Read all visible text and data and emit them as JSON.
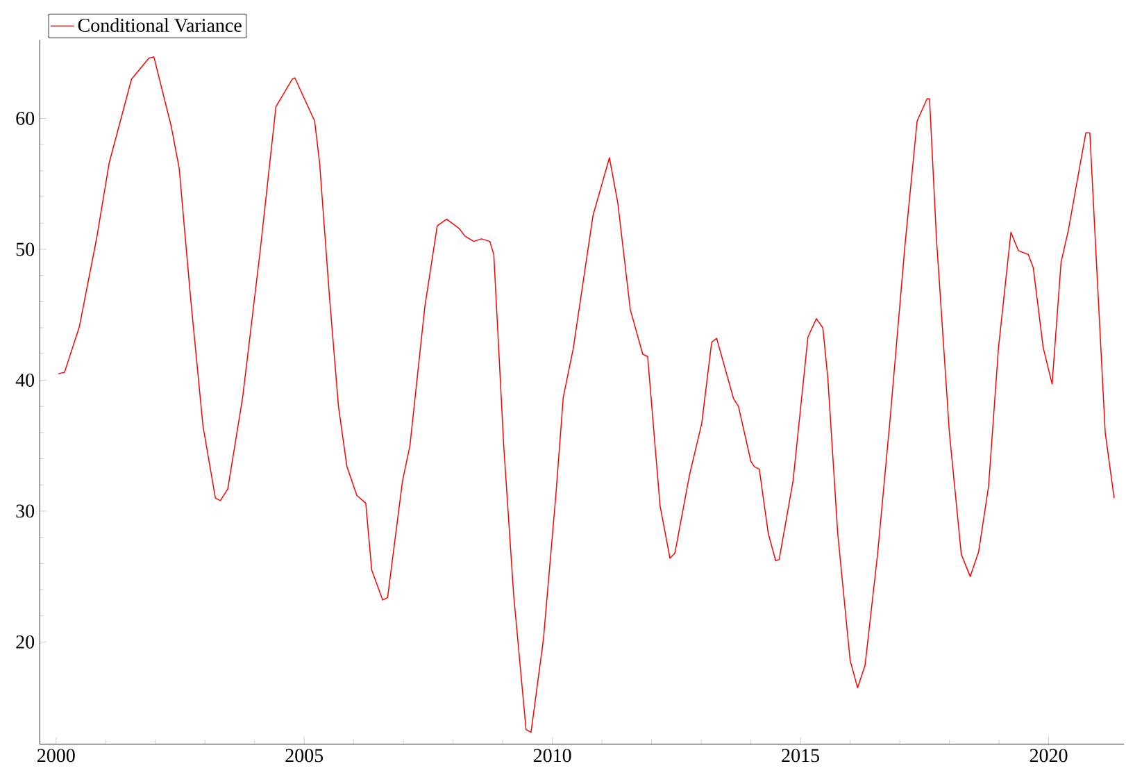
{
  "chart_data": {
    "type": "line",
    "xlim": [
      1999.67,
      2021.52
    ],
    "ylim": [
      12.2,
      66
    ],
    "xticks": [
      2000,
      2005,
      2010,
      2015,
      2020
    ],
    "yticks": [
      20,
      30,
      40,
      50,
      60
    ],
    "legend": "top left",
    "series": [
      {
        "name": "Conditional Variance",
        "color": "#ff0000",
        "x": [
          2000.05,
          2000.17,
          2000.47,
          2000.82,
          2001.07,
          2001.52,
          2001.87,
          2001.97,
          2002.32,
          2002.48,
          2002.71,
          2002.96,
          2003.21,
          2003.31,
          2003.46,
          2003.76,
          2004.11,
          2004.43,
          2004.76,
          2004.81,
          2005.21,
          2005.31,
          2005.51,
          2005.69,
          2005.86,
          2006.06,
          2006.24,
          2006.36,
          2006.58,
          2006.68,
          2006.98,
          2007.13,
          2007.43,
          2007.68,
          2007.87,
          2008.12,
          2008.24,
          2008.42,
          2008.57,
          2008.74,
          2008.82,
          2009.02,
          2009.22,
          2009.47,
          2009.57,
          2009.82,
          2010.07,
          2010.22,
          2010.42,
          2010.62,
          2010.82,
          2011.15,
          2011.32,
          2011.57,
          2011.82,
          2011.92,
          2012.17,
          2012.37,
          2012.47,
          2012.76,
          2013.01,
          2013.21,
          2013.31,
          2013.65,
          2013.75,
          2014.0,
          2014.07,
          2014.17,
          2014.35,
          2014.5,
          2014.57,
          2014.85,
          2015.15,
          2015.32,
          2015.45,
          2015.55,
          2015.75,
          2016.0,
          2016.15,
          2016.3,
          2016.55,
          2016.8,
          2017.1,
          2017.35,
          2017.55,
          2017.6,
          2017.74,
          2018.0,
          2018.24,
          2018.42,
          2018.59,
          2018.79,
          2018.99,
          2019.24,
          2019.39,
          2019.59,
          2019.69,
          2019.89,
          2020.07,
          2020.25,
          2020.4,
          2020.55,
          2020.75,
          2020.83,
          2021.0,
          2021.14,
          2021.32
        ],
        "values": [
          40.5,
          40.6,
          44.1,
          50.9,
          56.6,
          63.0,
          64.6,
          64.7,
          59.4,
          56.2,
          46.3,
          36.5,
          31.0,
          30.8,
          31.7,
          38.7,
          49.8,
          60.9,
          63.0,
          63.1,
          59.8,
          56.6,
          46.3,
          38.0,
          33.4,
          31.2,
          30.6,
          25.5,
          23.2,
          23.4,
          32.3,
          35.0,
          45.6,
          51.8,
          52.3,
          51.6,
          51.0,
          50.6,
          50.8,
          50.6,
          49.6,
          35.0,
          23.6,
          13.3,
          13.1,
          20.2,
          31.2,
          38.7,
          42.4,
          47.5,
          52.6,
          57.0,
          53.5,
          45.4,
          42.0,
          41.8,
          30.4,
          26.4,
          26.8,
          32.7,
          36.7,
          42.9,
          43.2,
          38.6,
          38.0,
          33.8,
          33.4,
          33.2,
          28.3,
          26.2,
          26.3,
          32.3,
          43.3,
          44.7,
          44.0,
          40.2,
          28.3,
          18.6,
          16.5,
          18.2,
          26.6,
          36.8,
          50.1,
          59.8,
          61.5,
          61.5,
          50.8,
          36.0,
          26.7,
          25.0,
          26.9,
          31.9,
          42.5,
          51.3,
          49.9,
          49.6,
          48.6,
          42.5,
          39.7,
          49.0,
          51.5,
          54.7,
          58.9,
          58.9,
          46.3,
          36.0,
          31.0
        ]
      }
    ]
  }
}
